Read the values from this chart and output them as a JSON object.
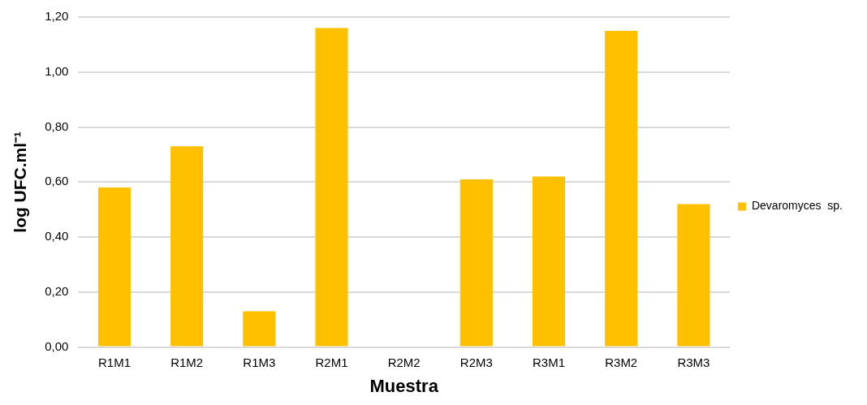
{
  "chart_data": {
    "type": "bar",
    "xlabel": "Muestra",
    "ylabel": "log UFC.ml⁻¹",
    "categories": [
      "R1M1",
      "R1M2",
      "R1M3",
      "R2M1",
      "R2M2",
      "R2M3",
      "R3M1",
      "R3M2",
      "R3M3"
    ],
    "series": [
      {
        "name": "Devaromyces  sp.",
        "color": "#ffc000",
        "values": [
          0.58,
          0.73,
          0.13,
          1.16,
          0,
          0.61,
          0.62,
          1.15,
          0.52
        ]
      }
    ],
    "ylim": [
      0,
      1.2
    ],
    "yticks": [
      {
        "value": 0,
        "label": "0,00"
      },
      {
        "value": 0.2,
        "label": "0,20"
      },
      {
        "value": 0.4,
        "label": "0,40"
      },
      {
        "value": 0.6,
        "label": "0,60"
      },
      {
        "value": 0.8,
        "label": "0,80"
      },
      {
        "value": 1,
        "label": "1,00"
      },
      {
        "value": 1.2,
        "label": "1,20"
      }
    ],
    "grid": "y",
    "legend": "right"
  }
}
